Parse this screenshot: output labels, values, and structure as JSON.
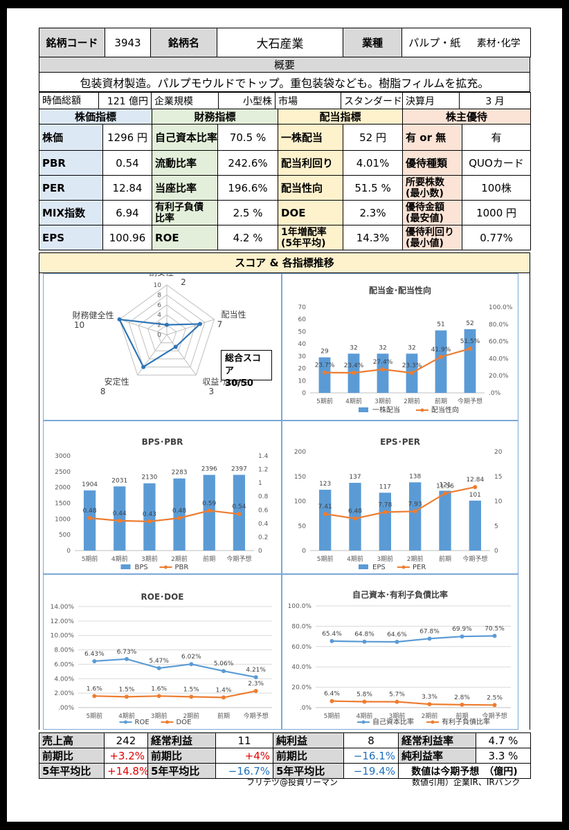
{
  "header": {
    "code_label": "銘柄コード",
    "code": "3943",
    "name_label": "銘柄名",
    "name": "大石産業",
    "industry_label": "業種",
    "industry": "パルプ・紙",
    "sector": "素材･化学"
  },
  "overview": {
    "title": "概要",
    "text": "包装資材製造。パルプモウルドでトップ。重包装袋なども。樹脂フィルムを拡充。"
  },
  "basic": {
    "mcap_label": "時価総額",
    "mcap": "121 億円",
    "size_label": "企業規模",
    "size": "小型株",
    "market_label": "市場",
    "market": "スタンダード",
    "fy_label": "決算月",
    "fy": "3 月"
  },
  "sections": {
    "stock": "株価指標",
    "fin": "財務指標",
    "div": "配当指標",
    "yutai": "株主優待"
  },
  "stock": [
    {
      "label": "株価",
      "value": "1296 円"
    },
    {
      "label": "PBR",
      "value": "0.54"
    },
    {
      "label": "PER",
      "value": "12.84"
    },
    {
      "label": "MIX指数",
      "value": "6.94"
    },
    {
      "label": "EPS",
      "value": "100.96"
    }
  ],
  "fin": [
    {
      "label": "自己資本比率",
      "value": "70.5 %"
    },
    {
      "label": "流動比率",
      "value": "242.6%"
    },
    {
      "label": "当座比率",
      "value": "196.6%"
    },
    {
      "label": "有利子負債\n比率",
      "value": "2.5 %"
    },
    {
      "label": "ROE",
      "value": "4.2 %"
    }
  ],
  "div": [
    {
      "label": "一株配当",
      "value": "52 円"
    },
    {
      "label": "配当利回り",
      "value": "4.01%"
    },
    {
      "label": "配当性向",
      "value": "51.5 %"
    },
    {
      "label": "DOE",
      "value": "2.3%"
    },
    {
      "label": "1年増配率\n(5年平均)",
      "value": "14.3%"
    }
  ],
  "yutai": [
    {
      "label": "有 or 無",
      "value": "有"
    },
    {
      "label": "優待種類",
      "value": "QUOカード"
    },
    {
      "label": "所要株数\n(最小数)",
      "value": "100株"
    },
    {
      "label": "優待金額\n(最安値)",
      "value": "1000 円"
    },
    {
      "label": "優待利回り\n(最小値)",
      "value": "0.77%"
    }
  ],
  "score_title": "スコア & 各指標推移",
  "radar": {
    "axes": [
      "割安性",
      "配当性",
      "収益･成長性",
      "安定性",
      "財務健全性"
    ],
    "values": [
      2,
      7,
      3,
      8,
      10
    ],
    "max": 10,
    "ticks": [
      "0",
      "2",
      "4",
      "6",
      "8",
      "10"
    ],
    "total_label": "総合スコア",
    "total": "30/50"
  },
  "chart_data": [
    {
      "id": "div",
      "type": "bar+line",
      "title": "配当金･配当性向",
      "categories": [
        "5期前",
        "4期前",
        "3期前",
        "2期前",
        "前期",
        "今期予想"
      ],
      "series": [
        {
          "name": "一株配当",
          "type": "bar",
          "values": [
            29,
            32,
            32,
            32,
            51,
            52
          ],
          "labels": [
            "29",
            "32",
            "32",
            "32",
            "51",
            "52"
          ]
        },
        {
          "name": "配当性向",
          "type": "line",
          "values": [
            0.237,
            0.234,
            0.274,
            0.233,
            0.419,
            0.515
          ],
          "labels": [
            "23.7%",
            "23.4%",
            "27.4%",
            "23.3%",
            "41.9%",
            "51.5%"
          ]
        }
      ],
      "y1": {
        "min": 0,
        "max": 70,
        "ticks": [
          "0",
          "10",
          "20",
          "30",
          "40",
          "50",
          "60",
          "70"
        ]
      },
      "y2": {
        "min": 0,
        "max": 1,
        "ticks": [
          ".0%",
          "20.0%",
          "40.0%",
          "60.0%",
          "80.0%",
          "100.0%"
        ]
      }
    },
    {
      "id": "bps",
      "type": "bar+line",
      "title": "BPS･PBR",
      "categories": [
        "5期前",
        "4期前",
        "3期前",
        "2期前",
        "前期",
        "今期予想"
      ],
      "series": [
        {
          "name": "BPS",
          "type": "bar",
          "values": [
            1904,
            2031,
            2130,
            2283,
            2396,
            2397
          ],
          "labels": [
            "1904",
            "2031",
            "2130",
            "2283",
            "2396",
            "2397"
          ]
        },
        {
          "name": "PBR",
          "type": "line",
          "values": [
            0.48,
            0.44,
            0.43,
            0.48,
            0.59,
            0.54
          ],
          "labels": [
            "0.48",
            "0.44",
            "0.43",
            "0.48",
            "0.59",
            "0.54"
          ]
        }
      ],
      "y1": {
        "min": 0,
        "max": 3000,
        "ticks": [
          "0",
          "500",
          "1000",
          "1500",
          "2000",
          "2500",
          "3000"
        ]
      },
      "y2": {
        "min": 0,
        "max": 1.4,
        "ticks": [
          "0",
          "0.2",
          "0.4",
          "0.6",
          "0.8",
          "1",
          "1.2",
          "1.4"
        ]
      }
    },
    {
      "id": "eps",
      "type": "bar+line",
      "title": "EPS･PER",
      "categories": [
        "5期前",
        "4期前",
        "3期前",
        "2期前",
        "前期",
        "今期予想"
      ],
      "series": [
        {
          "name": "EPS",
          "type": "bar",
          "values": [
            123,
            137,
            117,
            138,
            121,
            101
          ],
          "labels": [
            "123",
            "137",
            "117",
            "138",
            "121",
            "101"
          ]
        },
        {
          "name": "PER",
          "type": "line",
          "values": [
            7.41,
            6.48,
            7.78,
            7.93,
            11.56,
            12.84
          ],
          "labels": [
            "7.41",
            "6.48",
            "7.78",
            "7.93",
            "11.56",
            "12.84"
          ]
        }
      ],
      "y1": {
        "min": 0,
        "max": 200,
        "ticks": [
          "0",
          "50",
          "100",
          "150",
          "200"
        ]
      },
      "y2": {
        "min": 0,
        "max": 20,
        "ticks": [
          "0",
          "5",
          "10",
          "15",
          "20"
        ]
      }
    },
    {
      "id": "roe",
      "type": "line",
      "title": "ROE･DOE",
      "categories": [
        "5期前",
        "4期前",
        "3期前",
        "2期前",
        "前期",
        "今期予想"
      ],
      "series": [
        {
          "name": "ROE",
          "type": "line",
          "values": [
            6.43,
            6.73,
            5.47,
            6.02,
            5.06,
            4.21
          ],
          "labels": [
            "6.43%",
            "6.73%",
            "5.47%",
            "6.02%",
            "5.06%",
            "4.21%"
          ]
        },
        {
          "name": "DOE",
          "type": "line",
          "values": [
            1.6,
            1.5,
            1.6,
            1.5,
            1.4,
            2.3
          ],
          "labels": [
            "1.6%",
            "1.5%",
            "1.6%",
            "1.5%",
            "1.4%",
            "2.3%"
          ]
        }
      ],
      "y1": {
        "min": 0,
        "max": 14,
        "ticks": [
          ".00%",
          "2.00%",
          "4.00%",
          "6.00%",
          "8.00%",
          "10.00%",
          "12.00%",
          "14.00%"
        ]
      }
    },
    {
      "id": "eq",
      "type": "line",
      "title": "自己資本･有利子負債比率",
      "categories": [
        "5期前",
        "4期前",
        "3期前",
        "2期前",
        "前期",
        "今期予想"
      ],
      "series": [
        {
          "name": "自己資本比率",
          "type": "line",
          "values": [
            65.4,
            64.8,
            64.6,
            67.8,
            69.9,
            70.5
          ],
          "labels": [
            "65.4%",
            "64.8%",
            "64.6%",
            "67.8%",
            "69.9%",
            "70.5%"
          ]
        },
        {
          "name": "有利子負債比率",
          "type": "line",
          "values": [
            6.4,
            5.8,
            5.7,
            3.3,
            2.8,
            2.5
          ],
          "labels": [
            "6.4%",
            "5.8%",
            "5.7%",
            "3.3%",
            "2.8%",
            "2.5%"
          ]
        }
      ],
      "y1": {
        "min": 0,
        "max": 100,
        "ticks": [
          ".0%",
          "20.0%",
          "40.0%",
          "60.0%",
          "80.0%",
          "100.0%"
        ]
      }
    }
  ],
  "bottom": {
    "sales_label": "売上高",
    "sales": "242",
    "op_label": "経常利益",
    "op": "11",
    "net_label": "純利益",
    "net": "8",
    "opm_label": "経常利益率",
    "opm": "4.7 %",
    "yoy_label": "前期比",
    "sales_yoy": "+3.2%",
    "op_yoy": "+4%",
    "net_yoy": "−16.1%",
    "npm_label": "純利益率",
    "npm": "3.3 %",
    "avg5_label": "5年平均比",
    "sales_avg": "+14.8%",
    "op_avg": "−16.7%",
    "net_avg": "−19.4%",
    "note": "数値は今期予想　（億円)"
  },
  "footer": {
    "author": "フリテツ@投資リーマン",
    "source": "数値引用）企業IR、IRバンク"
  },
  "colors": {
    "bar": "#5b9bd5",
    "line": "#ed7d31",
    "radar": "#2e75b6"
  }
}
